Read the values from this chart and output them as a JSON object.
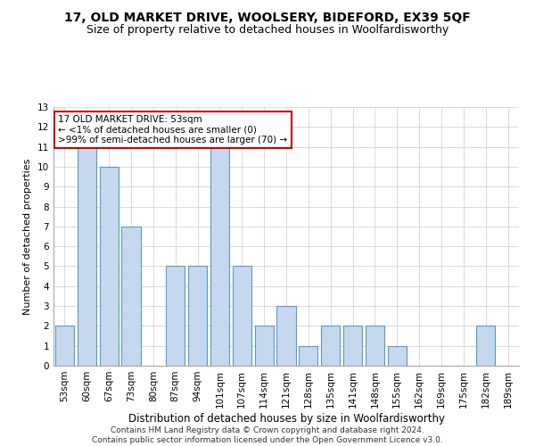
{
  "title": "17, OLD MARKET DRIVE, WOOLSERY, BIDEFORD, EX39 5QF",
  "subtitle": "Size of property relative to detached houses in Woolfardisworthy",
  "xlabel": "Distribution of detached houses by size in Woolfardisworthy",
  "ylabel": "Number of detached properties",
  "categories": [
    "53sqm",
    "60sqm",
    "67sqm",
    "73sqm",
    "80sqm",
    "87sqm",
    "94sqm",
    "101sqm",
    "107sqm",
    "114sqm",
    "121sqm",
    "128sqm",
    "135sqm",
    "141sqm",
    "148sqm",
    "155sqm",
    "162sqm",
    "169sqm",
    "175sqm",
    "182sqm",
    "189sqm"
  ],
  "values": [
    2,
    11,
    10,
    7,
    0,
    5,
    5,
    11,
    5,
    2,
    3,
    1,
    2,
    2,
    2,
    1,
    0,
    0,
    0,
    2,
    0
  ],
  "bar_color": "#c5d8ed",
  "bar_edge_color": "#5a9ac8",
  "annotation_box_color": "#ffffff",
  "annotation_box_edge_color": "#cc0000",
  "annotation_text_line1": "17 OLD MARKET DRIVE: 53sqm",
  "annotation_text_line2": "← <1% of detached houses are smaller (0)",
  "annotation_text_line3": ">99% of semi-detached houses are larger (70) →",
  "annotation_fontsize": 7.5,
  "title_fontsize": 10,
  "subtitle_fontsize": 9,
  "xlabel_fontsize": 8.5,
  "ylabel_fontsize": 8,
  "tick_fontsize": 7.5,
  "footer_line1": "Contains HM Land Registry data © Crown copyright and database right 2024.",
  "footer_line2": "Contains public sector information licensed under the Open Government Licence v3.0.",
  "footer_fontsize": 6.5,
  "ylim": [
    0,
    13
  ],
  "yticks": [
    0,
    1,
    2,
    3,
    4,
    5,
    6,
    7,
    8,
    9,
    10,
    11,
    12,
    13
  ],
  "background_color": "#ffffff",
  "grid_color": "#cccccc"
}
